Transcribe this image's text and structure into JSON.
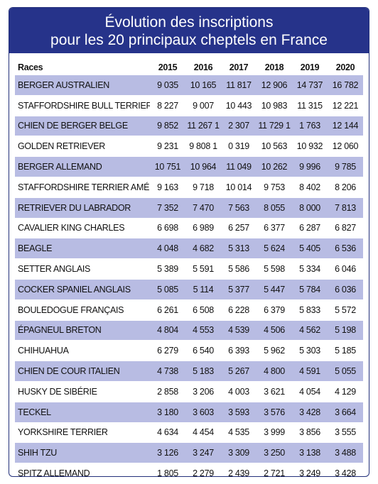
{
  "title": {
    "line1": "Évolution des inscriptions",
    "line2": "pour les 20 principaux cheptels en France"
  },
  "table": {
    "headers": [
      "Races",
      "2015",
      "2016",
      "2017",
      "2018",
      "2019",
      "2020"
    ],
    "rows": [
      {
        "race": "BERGER AUSTRALIEN",
        "values": [
          "9 035",
          "10 165",
          "11 817",
          "12 906",
          "14 737",
          "16 782"
        ]
      },
      {
        "race": "STAFFORDSHIRE BULL TERRIER",
        "values": [
          "8 227",
          "9 007",
          "10 443",
          "10 983",
          "11 315",
          "12 221"
        ]
      },
      {
        "race": "CHIEN DE BERGER BELGE",
        "values": [
          "9 852",
          "11 267 1",
          "2 307",
          "11 729 1",
          "1 763",
          "12 144"
        ]
      },
      {
        "race": "GOLDEN RETRIEVER",
        "values": [
          "9 231",
          "9 808 1",
          "0 319",
          "10 563",
          "10 932",
          "12 060"
        ]
      },
      {
        "race": "BERGER ALLEMAND",
        "values": [
          "10 751",
          "10 964",
          "11 049",
          "10 262",
          "9 996",
          "9 785"
        ]
      },
      {
        "race": "STAFFORDSHIRE TERRIER AMÉRICAIN",
        "values": [
          "9 163",
          "9 718",
          "10 014",
          "9 753",
          "8 402",
          "8 206"
        ]
      },
      {
        "race": "RETRIEVER DU LABRADOR",
        "values": [
          "7 352",
          "7 470",
          "7 563",
          "8 055",
          "8 000",
          "7 813"
        ]
      },
      {
        "race": "CAVALIER KING CHARLES",
        "values": [
          "6 698",
          "6 989",
          "6 257",
          "6 377",
          "6 287",
          "6 827"
        ]
      },
      {
        "race": "BEAGLE",
        "values": [
          "4 048",
          "4 682",
          "5 313",
          "5 624",
          "5 405",
          "6 536"
        ]
      },
      {
        "race": "SETTER ANGLAIS",
        "values": [
          "5 389",
          "5 591",
          "5 586",
          "5 598",
          "5 334",
          "6 046"
        ]
      },
      {
        "race": "COCKER SPANIEL ANGLAIS",
        "values": [
          "5 085",
          "5 114",
          "5 377",
          "5 447",
          "5 784",
          "6 036"
        ]
      },
      {
        "race": "BOULEDOGUE FRANÇAIS",
        "values": [
          "6 261",
          "6 508",
          "6 228",
          "6 379",
          "5 833",
          "5 572"
        ]
      },
      {
        "race": "ÉPAGNEUL BRETON",
        "values": [
          "4 804",
          "4 553",
          "4 539",
          "4 506",
          "4 562",
          "5 198"
        ]
      },
      {
        "race": "CHIHUAHUA",
        "values": [
          "6 279",
          "6 540",
          "6 393",
          "5 962",
          "5 303",
          "5 185"
        ]
      },
      {
        "race": "CHIEN DE COUR ITALIEN",
        "values": [
          "4 738",
          "5 183",
          "5 267",
          "4 800",
          "4 591",
          "5 055"
        ]
      },
      {
        "race": "HUSKY DE SIBÉRIE",
        "values": [
          "2 858",
          "3 206",
          "4 003",
          "3 621",
          "4 054",
          "4 129"
        ]
      },
      {
        "race": "TECKEL",
        "values": [
          "3 180",
          "3 603",
          "3 593",
          "3 576",
          "3 428",
          "3 664"
        ]
      },
      {
        "race": "YORKSHIRE TERRIER",
        "values": [
          "4 634",
          "4 454",
          "4 535",
          "3 999",
          "3 856",
          "3 555"
        ]
      },
      {
        "race": "SHIH TZU",
        "values": [
          "3 126",
          "3 247",
          "3 309",
          "3 250",
          "3 138",
          "3 488"
        ]
      },
      {
        "race": "SPITZ ALLEMAND",
        "values": [
          "1 805",
          "2 279",
          "2 439",
          "2 721",
          "3 249",
          "3 428"
        ]
      }
    ]
  }
}
